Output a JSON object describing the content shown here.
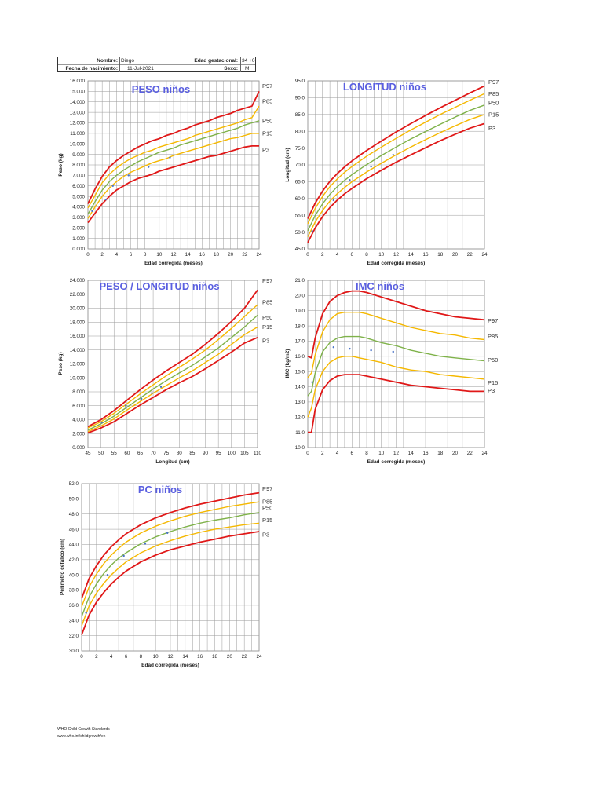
{
  "header": {
    "name_label": "Nombre:",
    "name_value": "Diego",
    "birth_label": "Fecha de nacimiento:",
    "birth_value": "11-Jul-2021",
    "gest_label": "Edad gestacional:",
    "gest_value": "34 +0",
    "sex_label": "Sexo:",
    "sex_value": "M"
  },
  "colors": {
    "p97_p3": "#e01818",
    "p85_p15": "#f5b800",
    "p50": "#7fb24a",
    "points": "#4a73c8",
    "grid": "#9a9a9a"
  },
  "chart_data": [
    {
      "type": "line",
      "title": "PESO niños",
      "xlabel": "Edad corregida (meses)",
      "ylabel": "Peso (kg)",
      "xlim": [
        0,
        24
      ],
      "ylim": [
        0,
        16
      ],
      "x_ticks": [
        "0",
        "2",
        "4",
        "6",
        "8",
        "10",
        "12",
        "14",
        "16",
        "18",
        "20",
        "22",
        "24"
      ],
      "y_ticks": [
        "0.000",
        "1.000",
        "2.000",
        "3.000",
        "4.000",
        "5.000",
        "6.000",
        "7.000",
        "8.000",
        "9.000",
        "10.000",
        "11.000",
        "12.000",
        "13.000",
        "14.000",
        "15.000",
        "16.000"
      ],
      "grid": true,
      "x": [
        0,
        1,
        2,
        3,
        4,
        5,
        6,
        7,
        8,
        9,
        10,
        11,
        12,
        13,
        14,
        15,
        16,
        17,
        18,
        19,
        20,
        21,
        22,
        23,
        24
      ],
      "series": [
        {
          "name": "P97",
          "color": "p97_p3",
          "values": [
            4.3,
            5.7,
            6.9,
            7.8,
            8.4,
            8.9,
            9.3,
            9.7,
            10.0,
            10.3,
            10.5,
            10.8,
            11.0,
            11.3,
            11.5,
            11.8,
            12.0,
            12.2,
            12.5,
            12.7,
            12.9,
            13.2,
            13.4,
            13.6,
            15.0
          ]
        },
        {
          "name": "P85",
          "color": "p85_p15",
          "values": [
            3.9,
            5.1,
            6.3,
            7.1,
            7.7,
            8.2,
            8.6,
            8.9,
            9.2,
            9.4,
            9.7,
            9.9,
            10.1,
            10.3,
            10.5,
            10.8,
            11.0,
            11.2,
            11.4,
            11.6,
            11.8,
            12.0,
            12.3,
            12.5,
            13.6
          ]
        },
        {
          "name": "P50",
          "color": "p50",
          "values": [
            3.3,
            4.5,
            5.6,
            6.4,
            7.0,
            7.5,
            7.9,
            8.3,
            8.6,
            8.9,
            9.2,
            9.4,
            9.6,
            9.9,
            10.1,
            10.3,
            10.5,
            10.7,
            10.9,
            11.1,
            11.3,
            11.5,
            11.8,
            12.0,
            12.2
          ]
        },
        {
          "name": "P15",
          "color": "p85_p15",
          "values": [
            2.9,
            4.0,
            5.0,
            5.8,
            6.4,
            6.9,
            7.3,
            7.6,
            7.9,
            8.2,
            8.4,
            8.6,
            8.9,
            9.1,
            9.3,
            9.5,
            9.7,
            9.9,
            10.1,
            10.3,
            10.5,
            10.6,
            10.8,
            11.0,
            11.0
          ]
        },
        {
          "name": "P3",
          "color": "p97_p3",
          "values": [
            2.5,
            3.4,
            4.3,
            5.0,
            5.6,
            6.0,
            6.4,
            6.7,
            6.9,
            7.1,
            7.4,
            7.6,
            7.8,
            8.0,
            8.2,
            8.4,
            8.6,
            8.8,
            8.9,
            9.1,
            9.3,
            9.5,
            9.7,
            9.8,
            9.8
          ]
        }
      ],
      "points": {
        "x": [
          0.6,
          2.5,
          3.5,
          5.7,
          8.5,
          11.5
        ],
        "y": [
          3.6,
          4.7,
          6.0,
          7.0,
          7.8,
          8.7
        ]
      }
    },
    {
      "type": "line",
      "title": "LONGITUD niños",
      "xlabel": "Edad corregida (meses)",
      "ylabel": "Longitud (cm)",
      "xlim": [
        0,
        24
      ],
      "ylim": [
        45,
        95
      ],
      "x_ticks": [
        "0",
        "2",
        "4",
        "6",
        "8",
        "10",
        "12",
        "14",
        "16",
        "18",
        "20",
        "22",
        "24"
      ],
      "y_ticks": [
        "45.0",
        "50.0",
        "55.0",
        "60.0",
        "65.0",
        "70.0",
        "75.0",
        "80.0",
        "85.0",
        "90.0",
        "95.0"
      ],
      "grid": true,
      "x": [
        0,
        1,
        2,
        3,
        4,
        5,
        6,
        8,
        10,
        12,
        14,
        16,
        18,
        20,
        22,
        24
      ],
      "series": [
        {
          "name": "P97",
          "color": "p97_p3",
          "values": [
            54.0,
            58.6,
            62.2,
            65.1,
            67.4,
            69.4,
            71.2,
            74.3,
            77.1,
            79.8,
            82.3,
            84.7,
            87.0,
            89.2,
            91.4,
            93.5
          ]
        },
        {
          "name": "P85",
          "color": "p85_p15",
          "values": [
            52.5,
            57.0,
            60.6,
            63.5,
            65.8,
            67.8,
            69.5,
            72.6,
            75.3,
            77.9,
            80.4,
            82.7,
            85.0,
            87.1,
            89.2,
            91.2
          ]
        },
        {
          "name": "P50",
          "color": "p50",
          "values": [
            50.4,
            54.9,
            58.4,
            61.2,
            63.5,
            65.4,
            67.1,
            70.1,
            72.8,
            75.3,
            77.7,
            79.9,
            82.1,
            84.2,
            86.2,
            87.8
          ]
        },
        {
          "name": "P15",
          "color": "p85_p15",
          "values": [
            48.6,
            53.0,
            56.4,
            59.2,
            61.4,
            63.3,
            65.0,
            67.9,
            70.5,
            73.0,
            75.3,
            77.5,
            79.6,
            81.6,
            83.5,
            85.0
          ]
        },
        {
          "name": "P3",
          "color": "p97_p3",
          "values": [
            46.9,
            51.2,
            54.6,
            57.3,
            59.5,
            61.4,
            63.0,
            65.9,
            68.4,
            70.8,
            73.0,
            75.1,
            77.2,
            79.1,
            80.9,
            82.3
          ]
        }
      ],
      "points": {
        "x": [
          0.6,
          3.5,
          5.7,
          8.6,
          11.6
        ],
        "y": [
          50.3,
          59.5,
          65.5,
          69.5,
          73.0
        ]
      }
    },
    {
      "type": "line",
      "title": "PESO / LONGITUD niños",
      "xlabel": "Longitud (cm)",
      "ylabel": "Peso (kg)",
      "xlim": [
        45,
        110
      ],
      "ylim": [
        0,
        24
      ],
      "x_ticks": [
        "45",
        "50",
        "55",
        "60",
        "65",
        "70",
        "75",
        "80",
        "85",
        "90",
        "95",
        "100",
        "105",
        "110"
      ],
      "y_ticks": [
        "0.000",
        "2.000",
        "4.000",
        "6.000",
        "8.000",
        "10.000",
        "12.000",
        "14.000",
        "16.000",
        "18.000",
        "20.000",
        "22.000",
        "24.000"
      ],
      "grid": true,
      "x": [
        45,
        50,
        55,
        60,
        65,
        70,
        75,
        80,
        85,
        90,
        95,
        100,
        105,
        110
      ],
      "series": [
        {
          "name": "P97",
          "color": "p97_p3",
          "values": [
            3.0,
            4.0,
            5.3,
            6.8,
            8.3,
            9.7,
            11.0,
            12.2,
            13.4,
            14.8,
            16.4,
            18.1,
            20.0,
            22.6
          ]
        },
        {
          "name": "P85",
          "color": "p85_p15",
          "values": [
            2.8,
            3.7,
            4.9,
            6.3,
            7.7,
            9.0,
            10.3,
            11.5,
            12.7,
            14.0,
            15.5,
            17.1,
            18.8,
            20.5
          ]
        },
        {
          "name": "P50",
          "color": "p50",
          "values": [
            2.5,
            3.4,
            4.5,
            5.8,
            7.1,
            8.4,
            9.6,
            10.7,
            11.8,
            13.0,
            14.3,
            15.8,
            17.3,
            19.0
          ]
        },
        {
          "name": "P15",
          "color": "p85_p15",
          "values": [
            2.3,
            3.1,
            4.1,
            5.4,
            6.6,
            7.8,
            8.9,
            10.0,
            11.0,
            12.2,
            13.4,
            14.8,
            16.2,
            17.3
          ]
        },
        {
          "name": "P3",
          "color": "p97_p3",
          "values": [
            2.1,
            2.8,
            3.7,
            4.9,
            6.1,
            7.2,
            8.3,
            9.3,
            10.2,
            11.3,
            12.5,
            13.7,
            15.0,
            15.8
          ]
        }
      ],
      "points": {
        "x": [
          50.3,
          59.5,
          65.5,
          69.5,
          73.0
        ],
        "y": [
          3.6,
          6.0,
          7.0,
          7.8,
          8.7
        ]
      }
    },
    {
      "type": "line",
      "title": "IMC niños",
      "xlabel": "Edad corregida (meses)",
      "ylabel": "IMC (kg/m2)",
      "xlim": [
        0,
        24
      ],
      "ylim": [
        10,
        21
      ],
      "x_ticks": [
        "0",
        "2",
        "4",
        "6",
        "8",
        "10",
        "12",
        "14",
        "16",
        "18",
        "20",
        "22",
        "24"
      ],
      "y_ticks": [
        "10.0",
        "11.0",
        "12.0",
        "13.0",
        "14.0",
        "15.0",
        "16.0",
        "17.0",
        "18.0",
        "19.0",
        "20.0",
        "21.0"
      ],
      "grid": true,
      "x": [
        0,
        0.5,
        1,
        2,
        3,
        4,
        5,
        6,
        7,
        8,
        10,
        12,
        14,
        16,
        18,
        20,
        22,
        24
      ],
      "series": [
        {
          "name": "P97",
          "color": "p97_p3",
          "values": [
            16.0,
            15.9,
            17.2,
            18.8,
            19.6,
            20.0,
            20.2,
            20.3,
            20.3,
            20.2,
            19.9,
            19.6,
            19.3,
            19.0,
            18.8,
            18.6,
            18.5,
            18.4
          ]
        },
        {
          "name": "P85",
          "color": "p85_p15",
          "values": [
            14.6,
            14.9,
            16.1,
            17.6,
            18.4,
            18.8,
            18.9,
            18.9,
            18.9,
            18.8,
            18.5,
            18.2,
            17.9,
            17.7,
            17.5,
            17.4,
            17.2,
            17.1
          ]
        },
        {
          "name": "P50",
          "color": "p50",
          "values": [
            13.4,
            13.7,
            14.9,
            16.3,
            16.9,
            17.2,
            17.3,
            17.3,
            17.3,
            17.2,
            16.9,
            16.7,
            16.4,
            16.2,
            16.0,
            15.9,
            15.8,
            15.7
          ]
        },
        {
          "name": "P15",
          "color": "p85_p15",
          "values": [
            12.0,
            12.6,
            13.8,
            15.0,
            15.6,
            15.9,
            16.0,
            16.0,
            15.9,
            15.8,
            15.6,
            15.3,
            15.1,
            15.0,
            14.8,
            14.7,
            14.6,
            14.5
          ]
        },
        {
          "name": "P3",
          "color": "p97_p3",
          "values": [
            11.0,
            11.0,
            12.5,
            13.8,
            14.4,
            14.7,
            14.8,
            14.8,
            14.8,
            14.7,
            14.5,
            14.3,
            14.1,
            14.0,
            13.9,
            13.8,
            13.7,
            13.7
          ]
        }
      ],
      "points": {
        "x": [
          0.6,
          3.5,
          5.7,
          8.6,
          11.6
        ],
        "y": [
          14.3,
          16.6,
          16.5,
          16.4,
          16.3
        ]
      }
    },
    {
      "type": "line",
      "title": "PC niños",
      "xlabel": "Edad corregida (meses)",
      "ylabel": "Perímetro cefálico (cm)",
      "xlim": [
        0,
        24
      ],
      "ylim": [
        30,
        52
      ],
      "x_ticks": [
        "0",
        "2",
        "4",
        "6",
        "8",
        "10",
        "12",
        "14",
        "16",
        "18",
        "20",
        "22",
        "24"
      ],
      "y_ticks": [
        "30.0",
        "32.0",
        "34.0",
        "36.0",
        "38.0",
        "40.0",
        "42.0",
        "44.0",
        "46.0",
        "48.0",
        "50.0",
        "52.0"
      ],
      "grid": true,
      "x": [
        0,
        1,
        2,
        3,
        4,
        5,
        6,
        8,
        10,
        12,
        14,
        16,
        18,
        20,
        22,
        24
      ],
      "series": [
        {
          "name": "P97",
          "color": "p97_p3",
          "values": [
            36.9,
            39.5,
            41.2,
            42.6,
            43.7,
            44.6,
            45.4,
            46.6,
            47.5,
            48.2,
            48.8,
            49.3,
            49.7,
            50.1,
            50.5,
            50.8
          ]
        },
        {
          "name": "P85",
          "color": "p85_p15",
          "values": [
            35.8,
            38.4,
            40.1,
            41.5,
            42.6,
            43.5,
            44.3,
            45.5,
            46.4,
            47.1,
            47.7,
            48.2,
            48.6,
            49.0,
            49.3,
            49.6
          ]
        },
        {
          "name": "P50",
          "color": "p50",
          "values": [
            34.5,
            37.1,
            38.8,
            40.2,
            41.3,
            42.2,
            42.9,
            44.1,
            45.0,
            45.7,
            46.3,
            46.8,
            47.2,
            47.5,
            47.9,
            48.2
          ]
        },
        {
          "name": "P15",
          "color": "p85_p15",
          "values": [
            33.3,
            35.9,
            37.6,
            38.9,
            40.0,
            40.9,
            41.7,
            42.9,
            43.8,
            44.5,
            45.1,
            45.6,
            46.0,
            46.3,
            46.6,
            46.8
          ]
        },
        {
          "name": "P3",
          "color": "p97_p3",
          "values": [
            32.1,
            34.7,
            36.4,
            37.7,
            38.8,
            39.7,
            40.5,
            41.7,
            42.6,
            43.3,
            43.8,
            44.3,
            44.7,
            45.1,
            45.4,
            45.7
          ]
        }
      ],
      "points": {
        "x": [
          0.6,
          3.5,
          5.7,
          8.6,
          11.6
        ],
        "y": [
          35.0,
          40.0,
          42.5,
          44.1,
          45.5
        ]
      }
    }
  ],
  "footer": {
    "line1": "WHO Child Growth Standards",
    "line2": "www.who.int/childgrowth/en"
  }
}
